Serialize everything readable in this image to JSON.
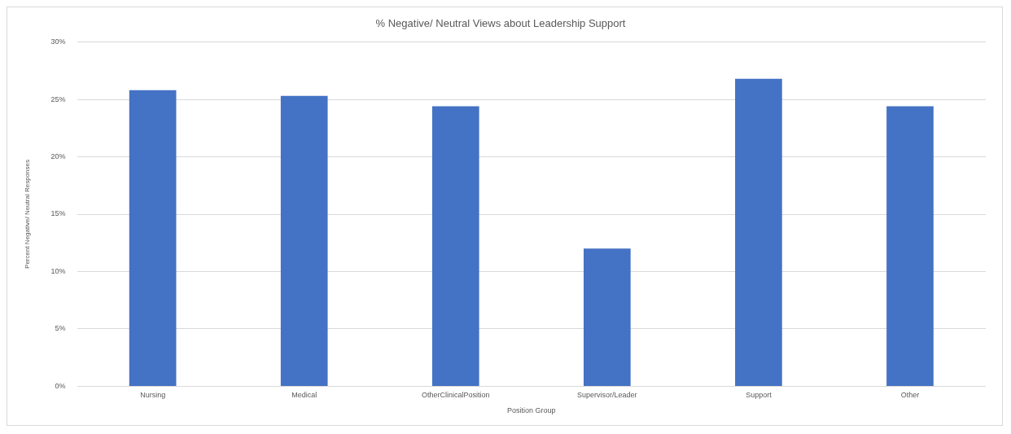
{
  "chart_data": {
    "type": "bar",
    "title": "% Negative/ Neutral Views about Leadership Support",
    "xlabel": "Position Group",
    "ylabel": "Percent Negative/ Neutral Responses",
    "categories": [
      "Nursing",
      "Medical",
      "OtherClinicalPosition",
      "Supervisor/Leader",
      "Support",
      "Other"
    ],
    "values": [
      25.8,
      25.3,
      24.4,
      12.0,
      26.8,
      24.4
    ],
    "color": "#4472c4",
    "ylim": [
      0,
      30
    ],
    "yticks": [
      {
        "value": 0,
        "label": "0%"
      },
      {
        "value": 5,
        "label": "5%"
      },
      {
        "value": 10,
        "label": "10%"
      },
      {
        "value": 15,
        "label": "15%"
      },
      {
        "value": 20,
        "label": "20%"
      },
      {
        "value": 25,
        "label": "25%"
      },
      {
        "value": 30,
        "label": "30%"
      }
    ],
    "grid": "y",
    "legend": false
  }
}
